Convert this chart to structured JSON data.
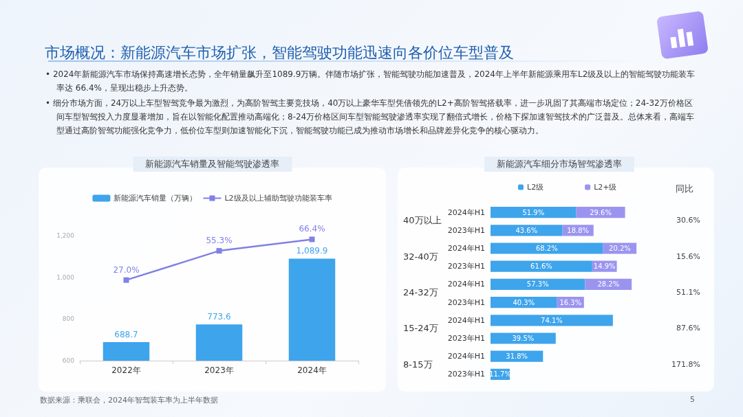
{
  "chart_data": [
    {
      "type": "other",
      "title": "市场概况：新能源汽车市场扩张，智能驾驶功能迅速向各价位车型普及",
      "annotations": [
        "• 2024年新能源汽车市场保持高速增长态势，全年销量飙升至1089.9万辆。伴随市场扩张，智能驾驶功能加速普及，2024年上半年新能源乘用车L2级及以上的智能驾驶功能装车率达 66.4%，呈现出稳步上升态势。",
        "• 细分市场方面，24万以上车型智驾竞争最为激烈，为高阶智驾主要竞技场，40万以上豪华车型凭借领先的L2+高阶智驾搭载率，进一步巩固了其高端市场定位；24-32万价格区间车型智驾投入力度显著增加，旨在以智能化配置推动高端化；8-24万价格区间车型智能驾驶渗透率实现了翻倍式增长，价格下探加速智驾技术的广泛普及。总体来看，高端车型通过高阶智驾功能强化竞争力，低价位车型则加速智能化下沉，智能驾驶功能已成为推动市场增长和品牌差异化竞争的核心驱动力。",
        "数据来源：乘联会，2024年智驾装车率为上半年数据",
        "5"
      ]
    },
    {
      "type": "bar",
      "title": "新能源汽车销量及智能驾驶渗透率",
      "categories": [
        "2022年",
        "2023年",
        "2024年"
      ],
      "series": [
        {
          "name": "新能源汽车销量（万辆）",
          "type": "bar",
          "color": "#3ea4ec",
          "values": [
            688.7,
            773.6,
            1089.9
          ],
          "value_labels": [
            "688.7",
            "773.6",
            "1,089.9"
          ]
        },
        {
          "name": "L2级及以上辅助驾驶功能装车率",
          "type": "line",
          "axis": "y2",
          "color": "#8080e6",
          "values": [
            27.0,
            55.3,
            66.4
          ],
          "value_labels": [
            "27.0%",
            "55.3%",
            "66.4%"
          ]
        }
      ],
      "ylim": [
        600,
        1200
      ],
      "yticks": [
        600,
        800,
        {
          "value": 1000,
          "label": "1,000"
        },
        {
          "value": 1200,
          "label": "1,200"
        }
      ],
      "y2lim": [
        -51,
        70
      ],
      "legend": "top",
      "marker": "square",
      "line_style": "solid"
    },
    {
      "type": "bar",
      "title": "新能源汽车细分市场智驾渗透率",
      "orientation": "horizontal",
      "stacked": true,
      "categories": [
        "2024年H1",
        "2023年H1",
        "2024年H1",
        "2023年H1",
        "2024年H1",
        "2023年H1",
        "2024年H1",
        "2023年H1",
        "2024年H1",
        "2023年H1"
      ],
      "series": [
        {
          "name": "L2级",
          "color": "#3ea4ec",
          "values": [
            51.9,
            43.6,
            68.2,
            61.6,
            57.3,
            40.3,
            74.1,
            39.5,
            31.8,
            11.7
          ],
          "value_labels": [
            "51.9%",
            "43.6%",
            "68.2%",
            "61.6%",
            "57.3%",
            "40.3%",
            "74.1%",
            "39.5%",
            "31.8%",
            "11.7%"
          ]
        },
        {
          "name": "L2+级",
          "color": "#9b94ef",
          "values": [
            29.6,
            18.8,
            20.2,
            14.9,
            28.2,
            16.3,
            null,
            null,
            null,
            null
          ],
          "value_labels": [
            "29.6%",
            "18.8%",
            "20.2%",
            "14.9%",
            "28.2%",
            "16.3%",
            null,
            null,
            null,
            null
          ]
        }
      ],
      "tick_labels": "y",
      "legend": "top",
      "annotations": [
        "40万以上",
        "32-40万",
        "24-32万",
        "15-24万",
        "8-15万",
        "同比",
        "30.6%",
        "15.6%",
        "51.1%",
        "87.6%",
        "171.8%"
      ]
    }
  ]
}
